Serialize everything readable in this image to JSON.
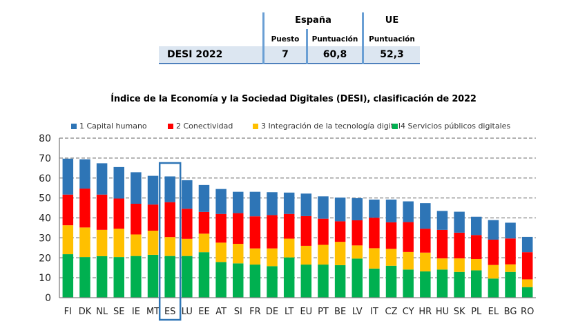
{
  "summary_table": {
    "country_header": "España",
    "eu_header": "UE",
    "col_rank": "Puesto",
    "col_score_es": "Puntuación",
    "col_score_eu": "Puntuación",
    "row_label": "DESI 2022",
    "rank": "7",
    "score_es": "60,8",
    "score_eu": "52,3"
  },
  "chart_data": {
    "type": "bar",
    "stacked": true,
    "title": "Índice de la Economía y la Sociedad Digitales (DESI), clasificación de 2022",
    "xlabel": "",
    "ylabel": "",
    "ylim": [
      0,
      80
    ],
    "yticks": [
      0,
      10,
      20,
      30,
      40,
      50,
      60,
      70,
      80
    ],
    "grid": true,
    "legend_position": "top",
    "highlighted_category": "ES",
    "categories": [
      "FI",
      "DK",
      "NL",
      "SE",
      "IE",
      "MT",
      "ES",
      "LU",
      "EE",
      "AT",
      "SI",
      "FR",
      "DE",
      "LT",
      "EU",
      "PT",
      "BE",
      "LV",
      "IT",
      "CZ",
      "CY",
      "HR",
      "HU",
      "SK",
      "PL",
      "EL",
      "BG",
      "RO"
    ],
    "series": [
      {
        "name": "4 Servicios públicos digitales",
        "color": "#00B050",
        "values": [
          21.8,
          20.4,
          20.8,
          20.4,
          20.9,
          21.5,
          20.9,
          20.9,
          22.8,
          17.9,
          17.2,
          16.6,
          15.8,
          20.2,
          16.6,
          16.6,
          16.3,
          19.6,
          14.6,
          16.0,
          14.1,
          13.2,
          14.1,
          12.9,
          13.7,
          9.6,
          12.9,
          5.3
        ]
      },
      {
        "name": "3 Integración de la tecnología digital",
        "color": "#FFC000",
        "values": [
          14.5,
          14.8,
          13.2,
          14.2,
          10.8,
          12.1,
          9.5,
          8.6,
          9.3,
          9.7,
          9.8,
          8.1,
          8.9,
          9.4,
          9.4,
          9.9,
          11.7,
          6.6,
          10.2,
          8.5,
          8.8,
          9.4,
          5.6,
          6.8,
          5.7,
          6.8,
          3.8,
          3.9
        ]
      },
      {
        "name": "2 Conectividad",
        "color": "#FF0000",
        "values": [
          15.4,
          19.5,
          17.7,
          15.1,
          15.4,
          13.1,
          17.5,
          15.1,
          10.9,
          14.4,
          15.4,
          16.1,
          16.7,
          12.4,
          14.9,
          13.1,
          10.3,
          12.6,
          15.3,
          13.3,
          15.0,
          12.0,
          14.3,
          12.9,
          12.0,
          12.7,
          13.0,
          13.6
        ]
      },
      {
        "name": "1 Capital humano",
        "color": "#2E75B6",
        "values": [
          18.0,
          14.7,
          15.7,
          15.8,
          15.8,
          14.4,
          12.9,
          14.3,
          13.5,
          12.5,
          10.7,
          12.3,
          11.5,
          10.7,
          11.3,
          11.2,
          11.9,
          11.1,
          9.1,
          11.4,
          10.4,
          12.8,
          9.5,
          10.5,
          9.2,
          9.8,
          7.9,
          7.7
        ]
      }
    ]
  }
}
